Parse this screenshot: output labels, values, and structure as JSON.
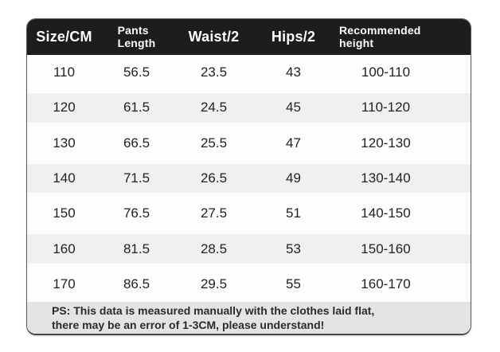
{
  "chart_data": {
    "type": "table",
    "columns": [
      "Size/CM",
      "Pants Length",
      "Waist/2",
      "Hips/2",
      "Recommended height"
    ],
    "columns_display": [
      "Size/CM",
      "Pants\nLength",
      "Waist/2",
      "Hips/2",
      "Recommended\nheight"
    ],
    "rows": [
      [
        "110",
        "56.5",
        "23.5",
        "43",
        "100-110"
      ],
      [
        "120",
        "61.5",
        "24.5",
        "45",
        "110-120"
      ],
      [
        "130",
        "66.5",
        "25.5",
        "47",
        "120-130"
      ],
      [
        "140",
        "71.5",
        "26.5",
        "49",
        "130-140"
      ],
      [
        "150",
        "76.5",
        "27.5",
        "51",
        "140-150"
      ],
      [
        "160",
        "81.5",
        "28.5",
        "53",
        "150-160"
      ],
      [
        "170",
        "86.5",
        "29.5",
        "55",
        "160-170"
      ]
    ],
    "note_lines": [
      "PS: This data is measured manually with the clothes laid flat,",
      "there may be an error of 1-3CM, please understand!"
    ],
    "layout_hints": {
      "zebra_striping": true,
      "striped_row_indices": [
        1,
        3,
        5
      ]
    }
  },
  "colors": {
    "header_bg": "#1d1d1d",
    "header_text": "#ffffff",
    "row_bg": "#fdfdfd",
    "row_alt_bg": "#f0f0f0",
    "footer_bg": "#e4e4e4",
    "body_text": "#222222",
    "border": "#5c5c5c"
  }
}
